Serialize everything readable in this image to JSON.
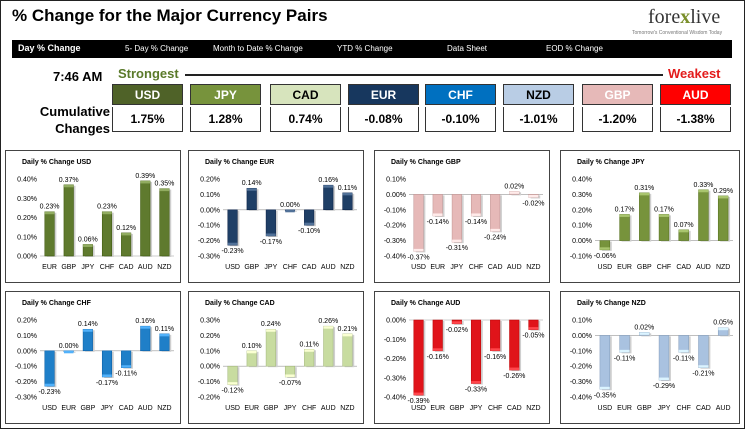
{
  "header": {
    "title": "% Change for the Major Currency Pairs",
    "logo_text_left": "fore",
    "logo_text_x": "x",
    "logo_text_right": "live",
    "logo_tagline": "Tomorrow's Conventional Wisdom Today"
  },
  "nav": {
    "tabs": [
      {
        "label": "Day % Change",
        "active": true
      },
      {
        "label": "5- Day % Change",
        "active": false
      },
      {
        "label": "Month to Date % Change",
        "active": false
      },
      {
        "label": "YTD % Change",
        "active": false
      },
      {
        "label": "Data Sheet",
        "active": false
      },
      {
        "label": "EOD % Change",
        "active": false
      }
    ]
  },
  "summary": {
    "time": "7:46 AM",
    "strongest_label": "Strongest",
    "weakest_label": "Weakest",
    "cumulative_label_1": "Cumulative",
    "cumulative_label_2": "Changes",
    "currencies": [
      {
        "code": "USD",
        "value": "1.75%",
        "bg": "#4f6228",
        "fg": "#ffffff"
      },
      {
        "code": "JPY",
        "value": "1.28%",
        "bg": "#77933c",
        "fg": "#ffffff"
      },
      {
        "code": "CAD",
        "value": "0.74%",
        "bg": "#d7e4bd",
        "fg": "#000000"
      },
      {
        "code": "EUR",
        "value": "-0.08%",
        "bg": "#17375e",
        "fg": "#ffffff"
      },
      {
        "code": "CHF",
        "value": "-0.10%",
        "bg": "#0070c0",
        "fg": "#ffffff"
      },
      {
        "code": "NZD",
        "value": "-1.01%",
        "bg": "#b9cde5",
        "fg": "#000000"
      },
      {
        "code": "GBP",
        "value": "-1.20%",
        "bg": "#e6b9b8",
        "fg": "#ffffff"
      },
      {
        "code": "AUD",
        "value": "-1.38%",
        "bg": "#ff0000",
        "fg": "#ffffff"
      }
    ]
  },
  "chart_data": [
    {
      "type": "bar",
      "title": "Daily % Change USD",
      "categories": [
        "EUR",
        "GBP",
        "JPY",
        "CHF",
        "CAD",
        "AUD",
        "NZD"
      ],
      "values": [
        0.23,
        0.37,
        0.06,
        0.23,
        0.12,
        0.39,
        0.35
      ],
      "labels": [
        "0.23%",
        "0.37%",
        "0.06%",
        "0.23%",
        "0.12%",
        "0.39%",
        "0.35%"
      ],
      "ylim": [
        0,
        0.4
      ],
      "yticks": [
        "0.00%",
        "0.10%",
        "0.20%",
        "0.30%",
        "0.40%"
      ],
      "color": "#5f7a2e"
    },
    {
      "type": "bar",
      "title": "Daily % Change EUR",
      "categories": [
        "USD",
        "GBP",
        "JPY",
        "CHF",
        "CAD",
        "AUD",
        "NZD"
      ],
      "values": [
        -0.23,
        0.14,
        -0.17,
        0.0,
        -0.1,
        0.16,
        0.11
      ],
      "labels": [
        "-0.23%",
        "0.14%",
        "-0.17%",
        "0.00%",
        "-0.10%",
        "0.16%",
        "0.11%"
      ],
      "ylim": [
        -0.3,
        0.2
      ],
      "yticks": [
        "-0.30%",
        "-0.20%",
        "-0.10%",
        "0.00%",
        "0.10%",
        "0.20%"
      ],
      "color": "#1f3f66"
    },
    {
      "type": "bar",
      "title": "Daily % Change GBP",
      "categories": [
        "USD",
        "EUR",
        "JPY",
        "CHF",
        "CAD",
        "AUD",
        "NZD"
      ],
      "values": [
        -0.37,
        -0.14,
        -0.31,
        -0.14,
        -0.24,
        0.02,
        -0.02
      ],
      "labels": [
        "-0.37%",
        "-0.14%",
        "-0.31%",
        "-0.14%",
        "-0.24%",
        "0.02%",
        "-0.02%"
      ],
      "ylim": [
        -0.4,
        0.1
      ],
      "yticks": [
        "-0.40%",
        "-0.30%",
        "-0.20%",
        "-0.10%",
        "0.00%",
        "0.10%"
      ],
      "color": "#e6b9b8"
    },
    {
      "type": "bar",
      "title": "Daily % Change JPY",
      "categories": [
        "USD",
        "EUR",
        "GBP",
        "CHF",
        "CAD",
        "AUD",
        "NZD"
      ],
      "values": [
        -0.06,
        0.17,
        0.31,
        0.17,
        0.07,
        0.33,
        0.29
      ],
      "labels": [
        "-0.06%",
        "0.17%",
        "0.31%",
        "0.17%",
        "0.07%",
        "0.33%",
        "0.29%"
      ],
      "ylim": [
        -0.1,
        0.4
      ],
      "yticks": [
        "-0.10%",
        "0.00%",
        "0.10%",
        "0.20%",
        "0.30%",
        "0.40%"
      ],
      "color": "#77933c"
    },
    {
      "type": "bar",
      "title": "Daily % Change CHF",
      "categories": [
        "USD",
        "EUR",
        "GBP",
        "JPY",
        "CAD",
        "AUD",
        "NZD"
      ],
      "values": [
        -0.23,
        0.0,
        0.14,
        -0.17,
        -0.11,
        0.16,
        0.11
      ],
      "labels": [
        "-0.23%",
        "0.00%",
        "0.14%",
        "-0.17%",
        "-0.11%",
        "0.16%",
        "0.11%"
      ],
      "ylim": [
        -0.3,
        0.2
      ],
      "yticks": [
        "-0.30%",
        "-0.20%",
        "-0.10%",
        "0.00%",
        "0.10%",
        "0.20%"
      ],
      "color": "#1f7fc8"
    },
    {
      "type": "bar",
      "title": "Daily % Change CAD",
      "categories": [
        "USD",
        "EUR",
        "GBP",
        "JPY",
        "CHF",
        "AUD",
        "NZD"
      ],
      "values": [
        -0.12,
        0.1,
        0.24,
        -0.07,
        0.11,
        0.26,
        0.21
      ],
      "labels": [
        "-0.12%",
        "0.10%",
        "0.24%",
        "-0.07%",
        "0.11%",
        "0.26%",
        "0.21%"
      ],
      "ylim": [
        -0.2,
        0.3
      ],
      "yticks": [
        "-0.20%",
        "-0.10%",
        "0.00%",
        "0.10%",
        "0.20%",
        "0.30%"
      ],
      "color": "#c8dca0"
    },
    {
      "type": "bar",
      "title": "Daily % Change AUD",
      "categories": [
        "USD",
        "EUR",
        "GBP",
        "JPY",
        "CHF",
        "CAD",
        "NZD"
      ],
      "values": [
        -0.39,
        -0.16,
        -0.02,
        -0.33,
        -0.16,
        -0.26,
        -0.05
      ],
      "labels": [
        "-0.39%",
        "-0.16%",
        "-0.02%",
        "-0.33%",
        "-0.16%",
        "-0.26%",
        "-0.05%"
      ],
      "ylim": [
        -0.4,
        0.0
      ],
      "yticks": [
        "-0.40%",
        "-0.30%",
        "-0.20%",
        "-0.10%",
        "0.00%"
      ],
      "color": "#e0141a"
    },
    {
      "type": "bar",
      "title": "Daily % Change NZD",
      "categories": [
        "USD",
        "EUR",
        "GBP",
        "JPY",
        "CHF",
        "CAD",
        "AUD"
      ],
      "values": [
        -0.35,
        -0.11,
        0.02,
        -0.29,
        -0.11,
        -0.21,
        0.05
      ],
      "labels": [
        "-0.35%",
        "-0.11%",
        "0.02%",
        "-0.29%",
        "-0.11%",
        "-0.21%",
        "0.05%"
      ],
      "ylim": [
        -0.4,
        0.1
      ],
      "yticks": [
        "-0.40%",
        "-0.30%",
        "-0.20%",
        "-0.10%",
        "0.00%",
        "0.10%"
      ],
      "color": "#a9c2e0"
    }
  ]
}
